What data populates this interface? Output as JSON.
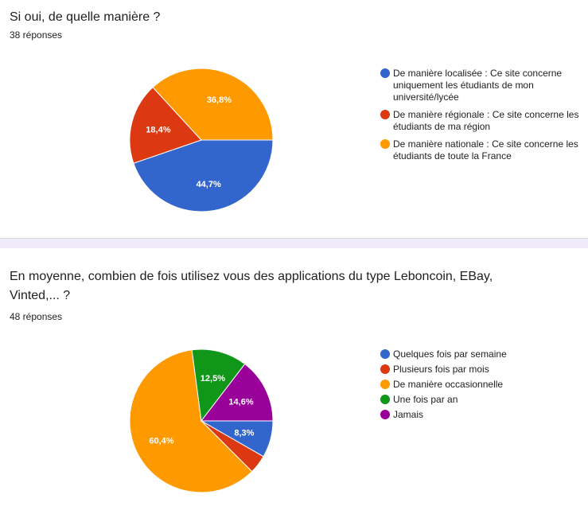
{
  "chart_data": [
    {
      "type": "pie",
      "title": "Si oui, de quelle manière ?",
      "responses": "38 réponses",
      "categories": [
        "De manière localisée : Ce site concerne uniquement les étudiants de mon université/lycée",
        "De manière régionale : Ce site concerne les étudiants de ma région",
        "De manière nationale : Ce site concerne les étudiants de toute la France"
      ],
      "values": [
        44.7,
        18.4,
        36.8
      ],
      "labels": [
        "44,7%",
        "18,4%",
        "36,8%"
      ],
      "colors": [
        "#3366cc",
        "#dc3912",
        "#ff9900"
      ],
      "legend": "right"
    },
    {
      "type": "pie",
      "title": "En moyenne, combien de fois utilisez vous des applications du type Leboncoin, EBay, Vinted,... ?",
      "responses": "48 réponses",
      "categories": [
        "Quelques fois par semaine",
        "Plusieurs fois par mois",
        "De manière occasionnelle",
        "Une fois par an",
        "Jamais"
      ],
      "values": [
        8.3,
        4.2,
        60.4,
        12.5,
        14.6
      ],
      "labels": [
        "8,3%",
        "",
        "60,4%",
        "12,5%",
        "14,6%"
      ],
      "colors": [
        "#3366cc",
        "#dc3912",
        "#ff9900",
        "#109618",
        "#990099"
      ],
      "legend": "right"
    }
  ]
}
